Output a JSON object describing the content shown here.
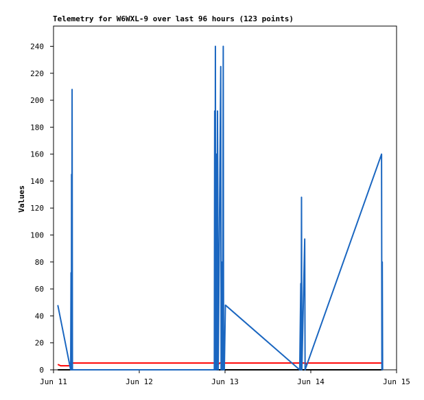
{
  "chart_data": {
    "type": "line",
    "title": "Telemetry for W6WXL-9 over last 96 hours (123 points)",
    "y_label": "Values",
    "xlim": [
      0,
      96
    ],
    "xticks": [
      {
        "value": 0,
        "label": "Jun 11"
      },
      {
        "value": 24,
        "label": "Jun 12"
      },
      {
        "value": 48,
        "label": "Jun 13"
      },
      {
        "value": 72,
        "label": "Jun 14"
      },
      {
        "value": 96,
        "label": "Jun 15"
      }
    ],
    "ylim": [
      0,
      255
    ],
    "yticks": [
      0,
      20,
      40,
      60,
      80,
      100,
      120,
      140,
      160,
      180,
      200,
      220,
      240
    ],
    "series": [
      {
        "color": "#000000",
        "x": [
          1.2,
          92.1
        ],
        "values": [
          0,
          0
        ]
      },
      {
        "color": "#ff0000",
        "x": [
          1.2,
          2.0,
          4.7,
          5.0,
          45.0,
          46.0,
          46.5,
          70.6,
          70.8,
          71.0,
          91.9
        ],
        "values": [
          4,
          3,
          3,
          5,
          5,
          4,
          5,
          5,
          4,
          5,
          5
        ]
      },
      {
        "color": "#1a66c0",
        "x": [
          1.2,
          4.8,
          4.9,
          5.0,
          5.05,
          5.1,
          5.2,
          5.3,
          45.0,
          45.1,
          45.2,
          45.3,
          45.4,
          45.6,
          45.7,
          45.9,
          46.0,
          46.1,
          46.8,
          46.9,
          47.2,
          47.3,
          47.5,
          47.6,
          47.7,
          47.8,
          48.1,
          68.9,
          69.2,
          69.3,
          69.4,
          69.5,
          70.3,
          70.4,
          91.8,
          91.9,
          92.0,
          92.1
        ],
        "values": [
          48,
          0,
          72,
          0,
          145,
          0,
          208,
          0,
          0,
          192,
          0,
          240,
          0,
          160,
          0,
          192,
          97,
          0,
          225,
          0,
          80,
          0,
          240,
          0,
          16,
          0,
          48,
          0,
          64,
          0,
          128,
          0,
          97,
          0,
          160,
          0,
          80,
          0
        ]
      }
    ]
  }
}
